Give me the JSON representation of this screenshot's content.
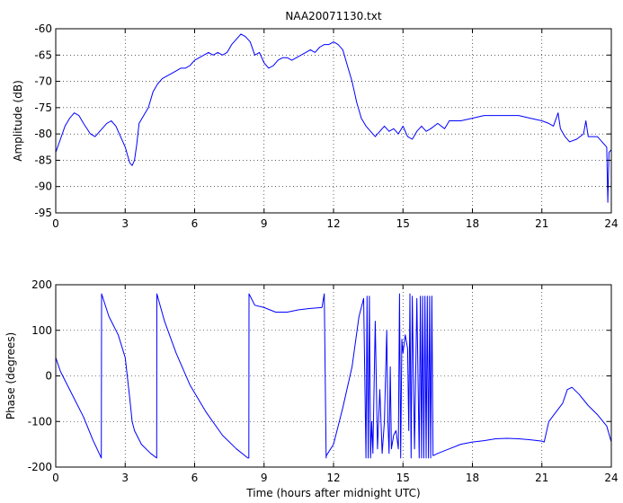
{
  "title": "NAA20071130.txt",
  "line_color": "#0000ff",
  "chart_data": [
    {
      "type": "line",
      "xlabel": "",
      "ylabel": "Amplitude (dB)",
      "xlim": [
        0,
        24
      ],
      "ylim": [
        -95,
        -60
      ],
      "xticks": [
        0,
        3,
        6,
        9,
        12,
        15,
        18,
        21,
        24
      ],
      "yticks": [
        -95,
        -90,
        -85,
        -80,
        -75,
        -70,
        -65,
        -60
      ],
      "grid": true,
      "series": [
        {
          "x": [
            0,
            0.2,
            0.4,
            0.6,
            0.8,
            1.0,
            1.2,
            1.5,
            1.7,
            2.0,
            2.2,
            2.4,
            2.6,
            2.8,
            3.0,
            3.1,
            3.2,
            3.3,
            3.4,
            3.5,
            3.6,
            3.8,
            4.0,
            4.2,
            4.4,
            4.6,
            4.8,
            5.0,
            5.2,
            5.4,
            5.6,
            5.8,
            6.0,
            6.2,
            6.4,
            6.6,
            6.8,
            7.0,
            7.2,
            7.4,
            7.6,
            7.8,
            8.0,
            8.2,
            8.4,
            8.6,
            8.8,
            9.0,
            9.2,
            9.4,
            9.6,
            9.8,
            10.0,
            10.2,
            10.4,
            10.6,
            10.8,
            11.0,
            11.2,
            11.4,
            11.6,
            11.8,
            12.0,
            12.2,
            12.4,
            12.6,
            12.8,
            13.0,
            13.2,
            13.4,
            13.6,
            13.8,
            14.0,
            14.2,
            14.4,
            14.6,
            14.8,
            15.0,
            15.2,
            15.4,
            15.6,
            15.8,
            16.0,
            16.2,
            16.5,
            16.8,
            17.0,
            17.5,
            18.0,
            18.5,
            19.0,
            19.5,
            20.0,
            20.5,
            21.0,
            21.3,
            21.5,
            21.7,
            21.8,
            22.0,
            22.2,
            22.5,
            22.8,
            22.9,
            23.0,
            23.2,
            23.4,
            23.6,
            23.8,
            23.85,
            23.9,
            24.0
          ],
          "y": [
            -83.5,
            -81,
            -78.5,
            -77,
            -76,
            -76.5,
            -78,
            -80,
            -80.5,
            -79,
            -78,
            -77.5,
            -78.5,
            -80.5,
            -82.5,
            -84,
            -85.5,
            -86,
            -85,
            -82,
            -78,
            -76.5,
            -75,
            -72,
            -70.5,
            -69.5,
            -69,
            -68.5,
            -68,
            -67.5,
            -67.5,
            -67,
            -66,
            -65.5,
            -65,
            -64.5,
            -65,
            -64.5,
            -65,
            -64.5,
            -63,
            -62,
            -61,
            -61.5,
            -62.5,
            -65,
            -64.5,
            -66.5,
            -67.5,
            -67,
            -66,
            -65.5,
            -65.5,
            -66,
            -65.5,
            -65,
            -64.5,
            -64,
            -64.5,
            -63.5,
            -63,
            -63,
            -62.5,
            -63,
            -64,
            -67,
            -70,
            -74,
            -77,
            -78.5,
            -79.5,
            -80.5,
            -79.5,
            -78.5,
            -79.5,
            -79,
            -80,
            -78.5,
            -80.5,
            -81,
            -79.5,
            -78.5,
            -79.5,
            -79,
            -78,
            -79,
            -77.5,
            -77.5,
            -77,
            -76.5,
            -76.5,
            -76.5,
            -76.5,
            -77,
            -77.5,
            -78,
            -78.5,
            -76,
            -79,
            -80.5,
            -81.5,
            -81,
            -80,
            -77.5,
            -80.5,
            -80.5,
            -80.5,
            -81.5,
            -82.5,
            -93,
            -83.5,
            -83
          ]
        }
      ]
    },
    {
      "type": "line",
      "xlabel": "Time (hours after midnight UTC)",
      "ylabel": "Phase (degrees)",
      "xlim": [
        0,
        24
      ],
      "ylim": [
        -200,
        200
      ],
      "xticks": [
        0,
        3,
        6,
        9,
        12,
        15,
        18,
        21,
        24
      ],
      "yticks": [
        -200,
        -100,
        0,
        100,
        200
      ],
      "grid": true,
      "series": [
        {
          "x": [
            0,
            0.2,
            0.5,
            0.8,
            1.2,
            1.6,
            1.97,
            1.98,
            2.3,
            2.7,
            3.0,
            3.2,
            3.3,
            3.4,
            3.7,
            4.1,
            4.36,
            4.37,
            4.7,
            5.2,
            5.8,
            6.5,
            7.2,
            7.8,
            8.3,
            8.34,
            8.35,
            8.6,
            9.0,
            9.5,
            10.0,
            10.5,
            11.0,
            11.5,
            11.6,
            11.68,
            11.69,
            12.0,
            12.4,
            12.8,
            13.1,
            13.3,
            13.4,
            13.45,
            13.5,
            13.55,
            13.6,
            13.65,
            13.7,
            13.8,
            13.9,
            14.0,
            14.1,
            14.2,
            14.3,
            14.35,
            14.4,
            14.45,
            14.5,
            14.6,
            14.7,
            14.8,
            14.85,
            14.9,
            14.95,
            15.0,
            15.1,
            15.2,
            15.25,
            15.3,
            15.35,
            15.4,
            15.5,
            15.6,
            15.7,
            15.75,
            15.8,
            15.85,
            15.9,
            15.95,
            16.0,
            16.05,
            16.1,
            16.15,
            16.2,
            16.25,
            16.3,
            16.5,
            17.0,
            17.5,
            18.0,
            18.5,
            19.0,
            19.5,
            20.0,
            20.5,
            21.0,
            21.1,
            21.3,
            21.6,
            21.9,
            22.1,
            22.3,
            22.6,
            23.0,
            23.4,
            23.8,
            24.0
          ],
          "y": [
            40,
            10,
            -20,
            -50,
            -90,
            -140,
            -180,
            180,
            130,
            90,
            40,
            -50,
            -100,
            -120,
            -150,
            -170,
            -180,
            180,
            120,
            50,
            -20,
            -80,
            -130,
            -160,
            -180,
            -180,
            180,
            155,
            150,
            140,
            140,
            145,
            148,
            150,
            180,
            -180,
            -175,
            -150,
            -70,
            20,
            130,
            170,
            -180,
            175,
            -180,
            175,
            -180,
            -100,
            -170,
            120,
            -160,
            -30,
            -170,
            -100,
            100,
            -100,
            -170,
            20,
            -160,
            -130,
            -120,
            -160,
            180,
            -180,
            80,
            50,
            90,
            60,
            -120,
            180,
            -180,
            175,
            -160,
            170,
            -180,
            175,
            -180,
            175,
            -180,
            175,
            -180,
            175,
            -180,
            175,
            -180,
            175,
            -175,
            -170,
            -160,
            -150,
            -145,
            -142,
            -138,
            -137,
            -138,
            -140,
            -143,
            -145,
            -100,
            -80,
            -60,
            -30,
            -25,
            -40,
            -65,
            -85,
            -110,
            -145
          ]
        }
      ]
    }
  ]
}
